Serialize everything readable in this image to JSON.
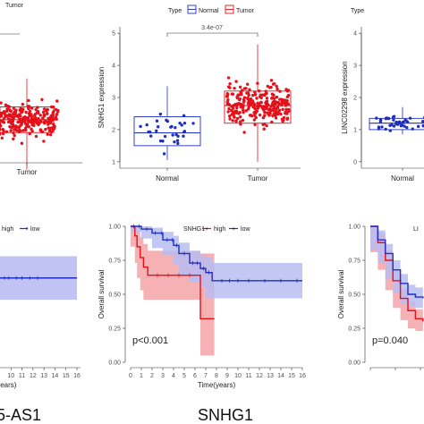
{
  "colors": {
    "normal": "#1f2fbf",
    "tumor": "#e4101a",
    "high_band": "#f4a3a8",
    "low_band": "#b9bdf2"
  },
  "chart_data": [
    {
      "type": "box",
      "title": "",
      "legend_title": "Type",
      "legend": [
        "Normal",
        "Tumor"
      ],
      "categories": [
        "Tumor"
      ],
      "ylabel": "",
      "series": [
        {
          "name": "Tumor",
          "q1": 1.8,
          "median": 2.25,
          "q3": 2.7,
          "whisker_low": 0.5,
          "whisker_high": 3.7,
          "n_points": 260
        }
      ]
    },
    {
      "type": "box",
      "title": "",
      "legend_title": "Type",
      "legend": [
        "Normal",
        "Tumor"
      ],
      "categories": [
        "Normal",
        "Tumor"
      ],
      "ylabel": "SNHG1 expression",
      "yticks": [
        1,
        2,
        3,
        4,
        5
      ],
      "ylim": [
        0.8,
        5.2
      ],
      "pvalue": "3.4e-07",
      "series": [
        {
          "name": "Normal",
          "q1": 1.5,
          "median": 1.9,
          "q3": 2.4,
          "whisker_low": 1.05,
          "whisker_high": 3.35,
          "n_points": 32
        },
        {
          "name": "Tumor",
          "q1": 2.2,
          "median": 2.75,
          "q3": 3.2,
          "whisker_low": 1.0,
          "whisker_high": 4.65,
          "n_points": 260
        }
      ]
    },
    {
      "type": "box",
      "title": "",
      "categories": [
        "Normal"
      ],
      "ylabel": "LINC02298 expression",
      "yticks": [
        0,
        1,
        2,
        3,
        4
      ],
      "ylim": [
        -0.2,
        4.2
      ],
      "series": [
        {
          "name": "Normal",
          "q1": 1.0,
          "median": 1.2,
          "q3": 1.35,
          "whisker_low": 0.85,
          "whisker_high": 1.7,
          "n_points": 50
        }
      ]
    },
    {
      "type": "line",
      "title": "",
      "legend": [
        "high",
        "low"
      ],
      "xlabel": "(years)",
      "xticks": [
        10,
        11,
        12,
        13,
        14,
        15,
        16
      ],
      "series": [
        {
          "name": "low",
          "x": [
            0,
            16
          ],
          "y": [
            0.62,
            0.62
          ]
        }
      ],
      "label": "5-AS1"
    },
    {
      "type": "line",
      "title": "",
      "legend_title": "SNHG1",
      "legend": [
        "high",
        "low"
      ],
      "xlabel": "Time(years)",
      "ylabel": "Overall survival",
      "xticks": [
        0,
        1,
        2,
        3,
        4,
        5,
        6,
        7,
        8,
        9,
        10,
        11,
        12,
        13,
        14,
        15,
        16
      ],
      "yticks": [
        "0.00",
        "0.25",
        "0.50",
        "0.75",
        "1.00"
      ],
      "xlim": [
        0,
        16
      ],
      "ylim": [
        0,
        1
      ],
      "pvalue": "p<0.001",
      "label": "SNHG1",
      "series": [
        {
          "name": "high",
          "x": [
            0,
            0.4,
            0.6,
            0.9,
            1.2,
            1.6,
            2.0,
            6.5,
            6.5,
            7.8
          ],
          "y": [
            1.0,
            0.93,
            0.85,
            0.77,
            0.7,
            0.64,
            0.64,
            0.64,
            0.32,
            0.32
          ],
          "lower": [
            1.0,
            0.85,
            0.73,
            0.62,
            0.53,
            0.46,
            0.46,
            0.46,
            0.05,
            0.05
          ],
          "upper": [
            1.0,
            1.0,
            0.97,
            0.92,
            0.87,
            0.82,
            0.82,
            0.82,
            0.8,
            0.8
          ]
        },
        {
          "name": "low",
          "x": [
            0,
            1,
            2,
            3,
            4,
            4.5,
            5.5,
            6.5,
            7.0,
            7.6,
            8.0,
            16
          ],
          "y": [
            1.0,
            0.98,
            0.95,
            0.9,
            0.86,
            0.8,
            0.73,
            0.69,
            0.66,
            0.6,
            0.6,
            0.6
          ],
          "lower": [
            1.0,
            0.96,
            0.91,
            0.84,
            0.79,
            0.72,
            0.64,
            0.59,
            0.55,
            0.47,
            0.47,
            0.47
          ],
          "upper": [
            1.0,
            1.0,
            0.99,
            0.96,
            0.93,
            0.88,
            0.82,
            0.79,
            0.77,
            0.73,
            0.73,
            0.73
          ]
        }
      ]
    },
    {
      "type": "line",
      "title": "",
      "legend_title": "LI",
      "ylabel": "Overall survival",
      "xticks": [
        0,
        1,
        2
      ],
      "yticks": [
        "0.00",
        "0.25",
        "0.50",
        "0.75",
        "1.00"
      ],
      "pvalue": "p=0.040",
      "series": [
        {
          "name": "high",
          "x": [
            0,
            0.3,
            0.6,
            0.9,
            1.2,
            1.5,
            1.8,
            2.1
          ],
          "y": [
            1.0,
            0.88,
            0.75,
            0.6,
            0.47,
            0.38,
            0.32,
            0.3
          ]
        },
        {
          "name": "low",
          "x": [
            0,
            0.3,
            0.6,
            0.9,
            1.2,
            1.5,
            1.8,
            2.1
          ],
          "y": [
            1.0,
            0.9,
            0.8,
            0.68,
            0.58,
            0.5,
            0.48,
            0.47
          ]
        }
      ]
    }
  ]
}
